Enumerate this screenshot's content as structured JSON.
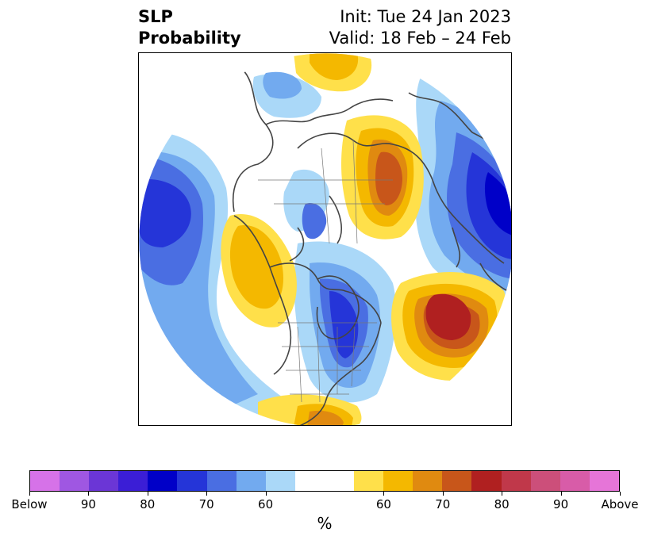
{
  "title": {
    "left_line1": "SLP",
    "left_line2": "Probability",
    "right_line1": "Init: Tue 24 Jan 2023",
    "right_line2": "Valid: 18 Feb – 24 Feb"
  },
  "colorbar": {
    "unit_label": "%",
    "colors": [
      "#d672e8",
      "#9f57e2",
      "#6b36d6",
      "#3b1ed6",
      "#0000c8",
      "#2535d8",
      "#4a6ee2",
      "#72aaef",
      "#aad8f8",
      "#ffffff",
      "#ffffff",
      "#ffe04a",
      "#f4b800",
      "#e08a10",
      "#c8561a",
      "#b02020",
      "#c0384a",
      "#cc4f7a",
      "#d85ca8",
      "#e675d8"
    ],
    "tick_labels": [
      "Below",
      "90",
      "80",
      "70",
      "60",
      "60",
      "70",
      "80",
      "90",
      "Above"
    ]
  },
  "palette": {
    "below_light": "#aad8f8",
    "below_mid": "#72aaef",
    "below_strong": "#4a6ee2",
    "below_deep": "#2535d8",
    "below_max": "#0000c8",
    "above_light": "#ffe04a",
    "above_mid": "#f4b800",
    "above_strong": "#e08a10",
    "above_deep": "#c8561a",
    "above_max": "#b02020",
    "coast": "#444444"
  }
}
